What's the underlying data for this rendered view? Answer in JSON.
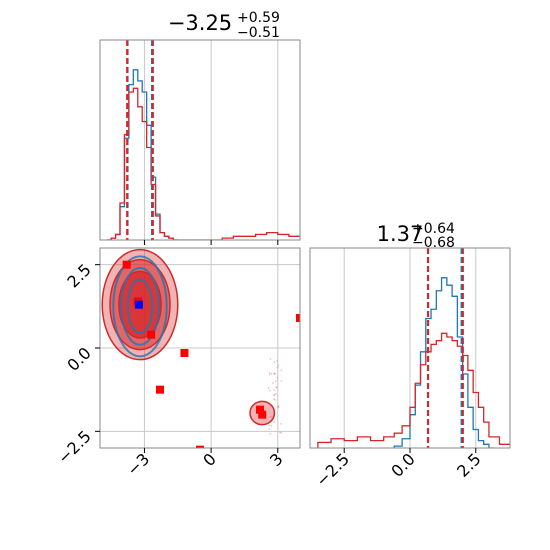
{
  "chart_data": [
    {
      "type": "histogram",
      "panel": "marginal-top-left",
      "title_main": "−3.25",
      "title_sup": "+0.59",
      "title_sub": "−0.51",
      "xlim": [
        -5.0,
        4.0
      ],
      "grid": true,
      "vlines": {
        "blue": [
          -3.76,
          -2.66
        ],
        "red": [
          -3.78,
          -2.62
        ]
      },
      "series": [
        {
          "color": "#1f77b4",
          "bins": [
            -4.7,
            -4.5,
            -4.3,
            -4.1,
            -3.9,
            -3.7,
            -3.5,
            -3.3,
            -3.1,
            -2.9,
            -2.7,
            -2.5,
            -2.3,
            -2.1,
            -1.9,
            -1.7
          ],
          "values": [
            0.0,
            0.01,
            0.03,
            0.18,
            0.55,
            0.84,
            0.92,
            0.86,
            0.8,
            0.62,
            0.34,
            0.14,
            0.04,
            0.02,
            0.01,
            0.0
          ]
        },
        {
          "color": "#d62728",
          "bins": [
            -4.7,
            -4.5,
            -4.3,
            -4.1,
            -3.9,
            -3.7,
            -3.5,
            -3.3,
            -3.1,
            -2.9,
            -2.7,
            -2.5,
            -2.3,
            -2.1,
            -1.9,
            -1.7,
            0.5,
            1.0,
            1.5,
            2.0,
            2.5,
            3.0,
            3.5
          ],
          "values": [
            0.0,
            0.01,
            0.03,
            0.2,
            0.57,
            0.8,
            0.82,
            0.72,
            0.64,
            0.5,
            0.3,
            0.13,
            0.04,
            0.02,
            0.01,
            0.0,
            0.01,
            0.02,
            0.02,
            0.03,
            0.04,
            0.03,
            0.02
          ]
        }
      ]
    },
    {
      "type": "histogram",
      "panel": "marginal-bottom-right",
      "title_main": "1.37",
      "title_sup": "+0.64",
      "title_sub": "−0.68",
      "xlim": [
        -3.8,
        3.8
      ],
      "grid": true,
      "xticks": [
        -2.5,
        0.0,
        2.5
      ],
      "xtick_labels": [
        "−2.5",
        "0.0",
        "2.5"
      ],
      "vlines": {
        "blue": [
          0.68,
          1.96
        ],
        "red": [
          0.69,
          2.01
        ]
      },
      "series": [
        {
          "color": "#1f77b4",
          "bins": [
            -0.6,
            -0.3,
            0.0,
            0.2,
            0.4,
            0.6,
            0.8,
            1.0,
            1.2,
            1.4,
            1.6,
            1.8,
            2.0,
            2.2,
            2.4,
            2.6,
            2.8,
            3.0
          ],
          "values": [
            0.01,
            0.05,
            0.18,
            0.34,
            0.52,
            0.7,
            0.75,
            0.85,
            0.92,
            0.88,
            0.82,
            0.6,
            0.4,
            0.22,
            0.1,
            0.04,
            0.02,
            0.0
          ]
        },
        {
          "color": "#d62728",
          "bins": [
            -3.5,
            -3.0,
            -2.5,
            -2.0,
            -1.5,
            -1.0,
            -0.6,
            -0.3,
            0.0,
            0.2,
            0.4,
            0.6,
            0.8,
            1.0,
            1.2,
            1.4,
            1.6,
            1.8,
            2.0,
            2.2,
            2.4,
            2.6,
            2.8,
            3.0,
            3.4
          ],
          "values": [
            0.03,
            0.05,
            0.04,
            0.06,
            0.04,
            0.06,
            0.08,
            0.12,
            0.22,
            0.35,
            0.45,
            0.52,
            0.56,
            0.58,
            0.62,
            0.6,
            0.58,
            0.55,
            0.5,
            0.42,
            0.3,
            0.22,
            0.14,
            0.06,
            0.02
          ]
        }
      ]
    },
    {
      "type": "scatter",
      "panel": "joint-bottom-left",
      "xlim": [
        -5.0,
        4.0
      ],
      "ylim": [
        -3.0,
        3.0
      ],
      "grid": true,
      "xticks": [
        -3,
        0,
        3
      ],
      "xtick_labels": [
        "−3",
        "0",
        "3"
      ],
      "yticks": [
        -2.5,
        0.0,
        2.5
      ],
      "ytick_labels": [
        "−2.5",
        "0.0",
        "2.5"
      ],
      "contours_red": [
        {
          "cx": -3.2,
          "cy": 1.3,
          "rx": 1.7,
          "ry": 1.65
        },
        {
          "cx": -3.2,
          "cy": 1.3,
          "rx": 1.35,
          "ry": 1.35
        },
        {
          "cx": -3.2,
          "cy": 1.3,
          "rx": 0.95,
          "ry": 1.0
        },
        {
          "cx": 2.3,
          "cy": -1.95,
          "rx": 0.55,
          "ry": 0.35
        }
      ],
      "contours_blue": [
        {
          "cx": -3.2,
          "cy": 1.25,
          "rx": 1.2,
          "ry": 1.5
        },
        {
          "cx": -3.2,
          "cy": 1.25,
          "rx": 0.85,
          "ry": 1.15
        },
        {
          "cx": -3.2,
          "cy": 1.25,
          "rx": 0.55,
          "ry": 0.8
        }
      ],
      "red_markers": [
        {
          "x": -3.8,
          "y": 2.5
        },
        {
          "x": -3.3,
          "y": 1.4
        },
        {
          "x": -2.7,
          "y": 0.4
        },
        {
          "x": -1.2,
          "y": -0.15
        },
        {
          "x": -2.3,
          "y": -1.25
        },
        {
          "x": -0.5,
          "y": -3.05
        },
        {
          "x": 2.2,
          "y": -1.85
        },
        {
          "x": 2.3,
          "y": -2.0
        },
        {
          "x": 4.0,
          "y": 0.9
        }
      ],
      "blue_marker": {
        "x": -3.25,
        "y": 1.3
      }
    }
  ]
}
